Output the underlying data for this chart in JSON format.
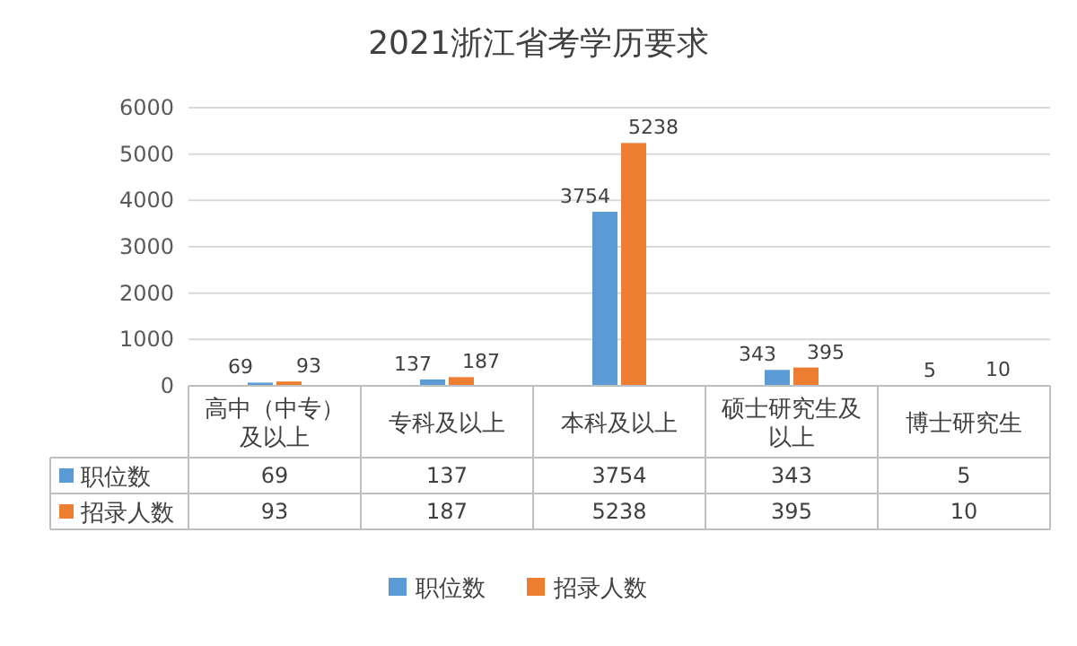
{
  "chart_data": {
    "type": "bar",
    "title": "2021浙江省考学历要求",
    "categories": [
      "高中（中专）及以上",
      "专科及以上",
      "本科及以上",
      "硕士研究生及以上",
      "博士研究生"
    ],
    "series": [
      {
        "name": "职位数",
        "color": "#5b9bd5",
        "values": [
          69,
          137,
          3754,
          343,
          5
        ],
        "value_labels": [
          "69",
          "137",
          "3754",
          "343",
          "5"
        ]
      },
      {
        "name": "招录人数",
        "color": "#ed7d31",
        "values": [
          93,
          187,
          5238,
          395,
          10
        ],
        "value_labels": [
          "93",
          "187",
          "5238",
          "395",
          "10"
        ]
      }
    ],
    "ylim": [
      0,
      6000
    ],
    "yticks": [
      0,
      1000,
      2000,
      3000,
      4000,
      5000,
      6000
    ],
    "grid": "y",
    "legend": "bottom",
    "data_labels": true
  }
}
